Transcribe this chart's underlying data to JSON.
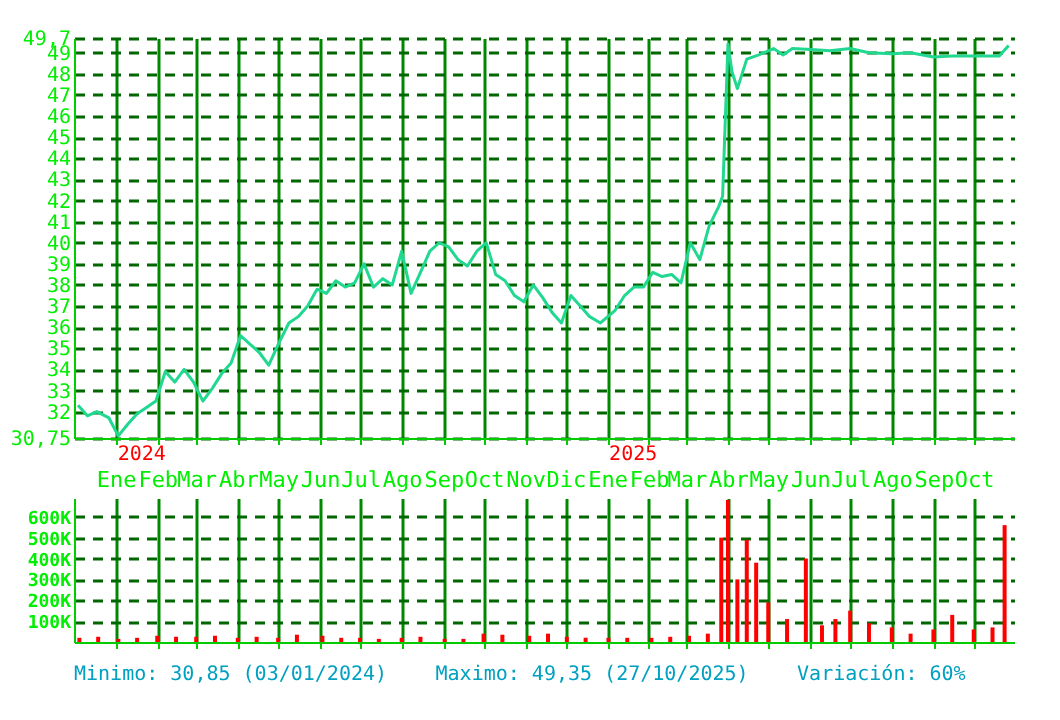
{
  "chart_data": [
    {
      "type": "line",
      "x": [
        "2023-12-04",
        "2023-12-11",
        "2023-12-18",
        "2023-12-27",
        "2024-01-03",
        "2024-01-10",
        "2024-01-17",
        "2024-01-24",
        "2024-01-31",
        "2024-02-07",
        "2024-02-14",
        "2024-02-21",
        "2024-02-28",
        "2024-03-06",
        "2024-03-13",
        "2024-03-20",
        "2024-03-27",
        "2024-04-03",
        "2024-04-10",
        "2024-04-17",
        "2024-04-24",
        "2024-05-02",
        "2024-05-09",
        "2024-05-16",
        "2024-05-23",
        "2024-05-30",
        "2024-06-06",
        "2024-06-13",
        "2024-06-20",
        "2024-06-27",
        "2024-07-04",
        "2024-07-11",
        "2024-07-18",
        "2024-07-25",
        "2024-08-01",
        "2024-08-08",
        "2024-08-15",
        "2024-08-22",
        "2024-08-29",
        "2024-09-05",
        "2024-09-12",
        "2024-09-19",
        "2024-09-26",
        "2024-10-03",
        "2024-10-10",
        "2024-10-17",
        "2024-10-24",
        "2024-10-31",
        "2024-11-07",
        "2024-11-14",
        "2024-11-21",
        "2024-11-28",
        "2024-12-05",
        "2024-12-12",
        "2024-12-19",
        "2024-12-27",
        "2025-01-07",
        "2025-01-14",
        "2025-01-21",
        "2025-01-28",
        "2025-02-04",
        "2025-02-11",
        "2025-02-18",
        "2025-02-25",
        "2025-03-04",
        "2025-03-11",
        "2025-03-18",
        "2025-03-25",
        "2025-03-28",
        "2025-04-01",
        "2025-04-04",
        "2025-04-08",
        "2025-04-15",
        "2025-04-24",
        "2025-05-05",
        "2025-05-12",
        "2025-05-19",
        "2025-06-02",
        "2025-06-16",
        "2025-07-01",
        "2025-07-15",
        "2025-08-01",
        "2025-08-15",
        "2025-09-01",
        "2025-09-15",
        "2025-10-01",
        "2025-10-20",
        "2025-10-27"
      ],
      "series": [
        {
          "color": "#20d890",
          "values": [
            32.3,
            31.8,
            32.0,
            31.7,
            30.85,
            31.4,
            31.9,
            32.2,
            32.5,
            33.9,
            33.4,
            34.0,
            33.4,
            32.5,
            33.1,
            33.8,
            34.3,
            35.6,
            35.2,
            34.8,
            34.2,
            35.3,
            36.2,
            36.5,
            37.0,
            37.8,
            37.6,
            38.2,
            37.9,
            38.1,
            39.0,
            37.9,
            38.3,
            38.0,
            39.6,
            37.6,
            38.6,
            39.6,
            40.0,
            39.8,
            39.2,
            38.9,
            39.6,
            40.0,
            38.5,
            38.2,
            37.5,
            37.2,
            38.0,
            37.4,
            36.7,
            36.2,
            37.5,
            37.0,
            36.5,
            36.2,
            36.8,
            37.5,
            37.9,
            37.9,
            38.6,
            38.4,
            38.5,
            38.1,
            40.0,
            39.2,
            40.8,
            41.7,
            42.2,
            49.4,
            48.1,
            47.3,
            48.7,
            48.9,
            49.2,
            48.9,
            49.2,
            49.15,
            49.1,
            49.2,
            49.0,
            48.95,
            49.0,
            48.8,
            48.85,
            48.85,
            48.85,
            49.35
          ]
        }
      ],
      "xlim": [
        "2023-12-01",
        "2025-10-31"
      ],
      "xticks": [
        {
          "value": "2024-01-01",
          "label": "Ene"
        },
        {
          "value": "2024-02-01",
          "label": "Feb"
        },
        {
          "value": "2024-03-01",
          "label": "Mar"
        },
        {
          "value": "2024-04-01",
          "label": "Abr"
        },
        {
          "value": "2024-05-01",
          "label": "May"
        },
        {
          "value": "2024-06-01",
          "label": "Jun"
        },
        {
          "value": "2024-07-01",
          "label": "Jul"
        },
        {
          "value": "2024-08-01",
          "label": "Ago"
        },
        {
          "value": "2024-09-01",
          "label": "Sep"
        },
        {
          "value": "2024-10-01",
          "label": "Oct"
        },
        {
          "value": "2024-11-01",
          "label": "Nov"
        },
        {
          "value": "2024-12-01",
          "label": "Dic"
        },
        {
          "value": "2025-01-01",
          "label": "Ene"
        },
        {
          "value": "2025-02-01",
          "label": "Feb"
        },
        {
          "value": "2025-03-01",
          "label": "Mar"
        },
        {
          "value": "2025-04-01",
          "label": "Abr"
        },
        {
          "value": "2025-05-01",
          "label": "May"
        },
        {
          "value": "2025-06-01",
          "label": "Jun"
        },
        {
          "value": "2025-07-01",
          "label": "Jul"
        },
        {
          "value": "2025-08-01",
          "label": "Ago"
        },
        {
          "value": "2025-09-01",
          "label": "Sep"
        },
        {
          "value": "2025-10-01",
          "label": "Oct"
        }
      ],
      "ylim": [
        30.75,
        49.7
      ],
      "yticks": [
        {
          "value": 30.75,
          "label": "30,75"
        },
        32,
        33,
        34,
        35,
        36,
        37,
        38,
        39,
        40,
        41,
        42,
        43,
        44,
        45,
        46,
        47,
        48,
        49,
        {
          "value": 49.7,
          "label": "49,7"
        }
      ],
      "grid": true,
      "line_style": "solid",
      "marker": "none",
      "legend": false,
      "annotations": [
        "2024",
        "2025"
      ]
    },
    {
      "type": "bar",
      "x": [
        "2023-12-05",
        "2023-12-19",
        "2024-01-03",
        "2024-01-17",
        "2024-02-01",
        "2024-02-15",
        "2024-03-01",
        "2024-03-15",
        "2024-04-01",
        "2024-04-15",
        "2024-05-01",
        "2024-05-15",
        "2024-06-03",
        "2024-06-17",
        "2024-07-01",
        "2024-07-15",
        "2024-08-01",
        "2024-08-15",
        "2024-09-02",
        "2024-09-16",
        "2024-10-01",
        "2024-10-15",
        "2024-11-04",
        "2024-11-18",
        "2024-12-02",
        "2024-12-16",
        "2025-01-02",
        "2025-01-16",
        "2025-02-03",
        "2025-02-17",
        "2025-03-03",
        "2025-03-17",
        "2025-03-27",
        "2025-04-01",
        "2025-04-08",
        "2025-04-15",
        "2025-04-22",
        "2025-05-01",
        "2025-05-15",
        "2025-05-29",
        "2025-06-10",
        "2025-06-20",
        "2025-07-01",
        "2025-07-15",
        "2025-08-01",
        "2025-08-15",
        "2025-09-01",
        "2025-09-15",
        "2025-10-01",
        "2025-10-15",
        "2025-10-24"
      ],
      "series": [
        {
          "color": "#ff0000",
          "values": [
            20000,
            25000,
            15000,
            20000,
            30000,
            25000,
            25000,
            30000,
            20000,
            25000,
            20000,
            35000,
            30000,
            20000,
            20000,
            15000,
            20000,
            25000,
            15000,
            15000,
            40000,
            35000,
            30000,
            40000,
            25000,
            20000,
            20000,
            20000,
            20000,
            25000,
            30000,
            40000,
            500000,
            680000,
            300000,
            490000,
            380000,
            190000,
            110000,
            400000,
            80000,
            110000,
            150000,
            90000,
            70000,
            40000,
            60000,
            130000,
            60000,
            70000,
            560000
          ]
        }
      ],
      "xlim": [
        "2023-12-01",
        "2025-10-31"
      ],
      "xticks": [
        {
          "value": "2024-01-01",
          "label": null
        },
        {
          "value": "2024-02-01",
          "label": null
        },
        {
          "value": "2024-03-01",
          "label": null
        },
        {
          "value": "2024-04-01",
          "label": null
        },
        {
          "value": "2024-05-01",
          "label": null
        },
        {
          "value": "2024-06-01",
          "label": null
        },
        {
          "value": "2024-07-01",
          "label": null
        },
        {
          "value": "2024-08-01",
          "label": null
        },
        {
          "value": "2024-09-01",
          "label": null
        },
        {
          "value": "2024-10-01",
          "label": null
        },
        {
          "value": "2024-11-01",
          "label": null
        },
        {
          "value": "2024-12-01",
          "label": null
        },
        {
          "value": "2025-01-01",
          "label": null
        },
        {
          "value": "2025-02-01",
          "label": null
        },
        {
          "value": "2025-03-01",
          "label": null
        },
        {
          "value": "2025-04-01",
          "label": null
        },
        {
          "value": "2025-05-01",
          "label": null
        },
        {
          "value": "2025-06-01",
          "label": null
        },
        {
          "value": "2025-07-01",
          "label": null
        },
        {
          "value": "2025-08-01",
          "label": null
        },
        {
          "value": "2025-09-01",
          "label": null
        },
        {
          "value": "2025-10-01",
          "label": null
        }
      ],
      "ylim": [
        0,
        690000
      ],
      "yticks": [
        {
          "value": 100000,
          "label": "100K"
        },
        {
          "value": 200000,
          "label": "200K"
        },
        {
          "value": 300000,
          "label": "300K"
        },
        {
          "value": 400000,
          "label": "400K"
        },
        {
          "value": 500000,
          "label": "500K"
        },
        {
          "value": 600000,
          "label": "600K"
        }
      ],
      "grid": true,
      "legend": false,
      "tick_labels": "y",
      "annotations": [
        "Minimo: 30,85 (03/01/2024)",
        "Maximo: 49,35 (27/10/2025)",
        "Variación: 60%"
      ]
    }
  ]
}
